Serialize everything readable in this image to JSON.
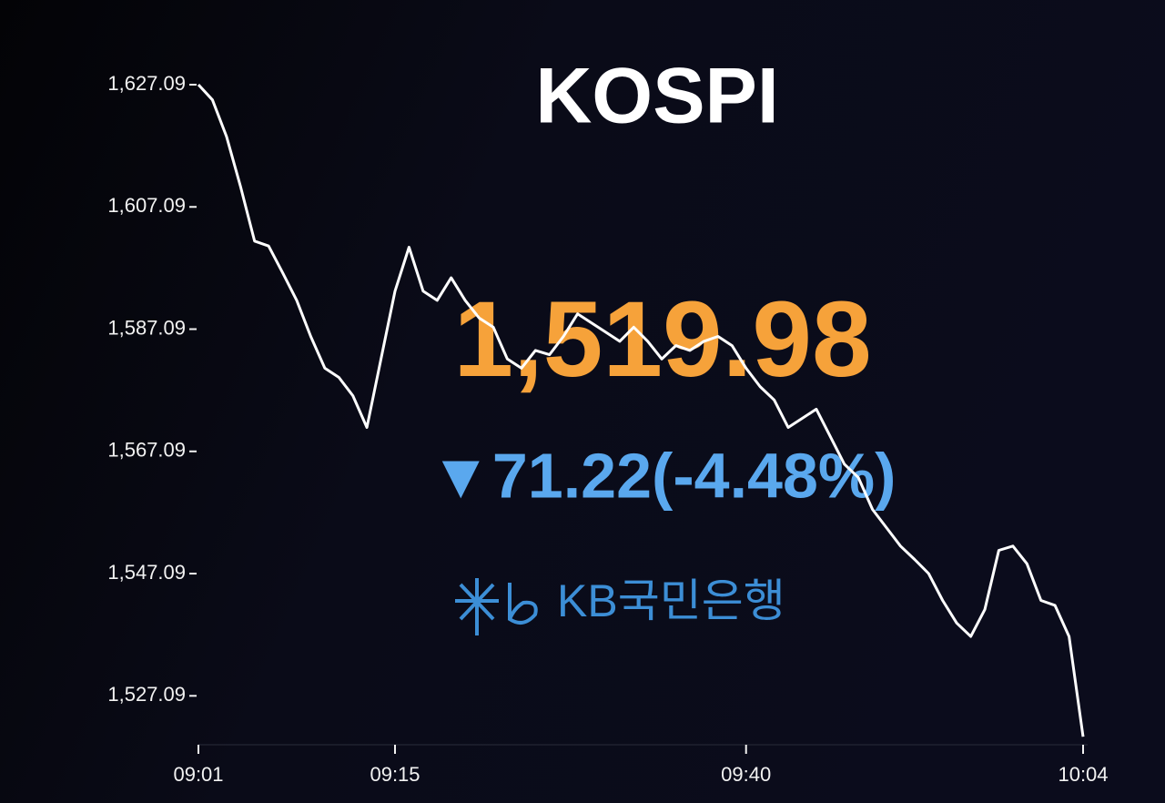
{
  "chart_data": {
    "type": "line",
    "title": "KOSPI",
    "annotations": [
      "1,519.98",
      "▼71.22(-4.48%)",
      "KB국민은행"
    ],
    "categories": [
      "09:01",
      null,
      null,
      null,
      null,
      null,
      null,
      null,
      null,
      null,
      null,
      null,
      null,
      null,
      "09:15",
      null,
      null,
      null,
      null,
      null,
      null,
      null,
      null,
      null,
      null,
      null,
      null,
      null,
      null,
      null,
      null,
      null,
      null,
      null,
      null,
      null,
      null,
      null,
      null,
      "09:40",
      null,
      null,
      null,
      null,
      null,
      null,
      null,
      null,
      null,
      null,
      null,
      null,
      null,
      null,
      null,
      null,
      null,
      null,
      null,
      null,
      null,
      null,
      null,
      "10:04"
    ],
    "series": [
      {
        "name": "KOSPI",
        "color": "#ffffff",
        "values": [
          1627.09,
          1624.6,
          1618.6,
          1610.4,
          1601.5,
          1600.7,
          1596.3,
          1591.8,
          1585.9,
          1580.7,
          1579.2,
          1576.2,
          1571.0,
          1582.2,
          1593.3,
          1600.5,
          1593.3,
          1591.8,
          1595.5,
          1591.8,
          1588.9,
          1587.4,
          1582.2,
          1580.7,
          1583.6,
          1582.9,
          1585.9,
          1589.6,
          1588.1,
          1586.6,
          1585.1,
          1587.4,
          1585.1,
          1582.2,
          1584.4,
          1583.6,
          1585.1,
          1585.9,
          1584.4,
          1580.7,
          1577.7,
          1575.5,
          1571.0,
          1572.5,
          1574.0,
          1569.5,
          1565.0,
          1562.8,
          1557.6,
          1554.6,
          1551.6,
          1549.4,
          1547.1,
          1542.7,
          1539.0,
          1536.8,
          1541.2,
          1550.9,
          1551.6,
          1548.7,
          1542.7,
          1541.9,
          1536.8,
          1520.4
        ]
      }
    ],
    "ylim": [
      1519.09,
      1627.09
    ],
    "yticks": [
      {
        "value": 1627.09,
        "label": "1,627.09"
      },
      {
        "value": 1607.09,
        "label": "1,607.09"
      },
      {
        "value": 1587.09,
        "label": "1,587.09"
      },
      {
        "value": 1567.09,
        "label": "1,567.09"
      },
      {
        "value": 1547.09,
        "label": "1,547.09"
      },
      {
        "value": 1527.09,
        "label": "1,527.09"
      }
    ]
  }
}
